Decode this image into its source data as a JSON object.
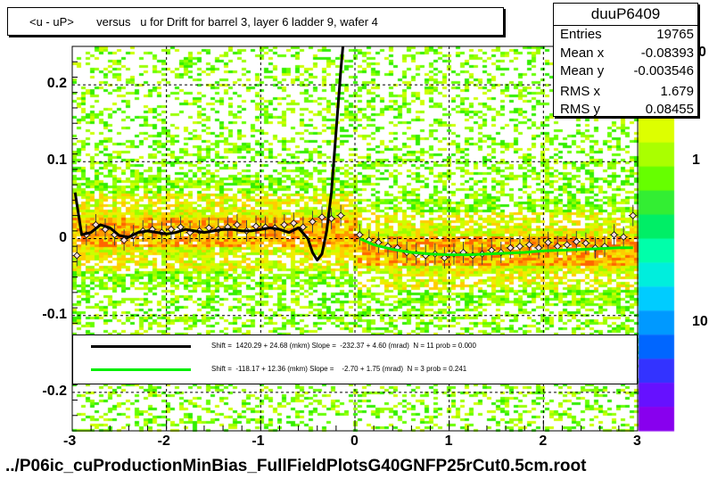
{
  "chart_data": {
    "type": "scatter",
    "title": "<u - uP>       versus   u for Drift for barrel 3, layer 6 ladder 9, wafer 4",
    "xlabel": "",
    "ylabel": "",
    "xlim": [
      -3,
      3
    ],
    "ylim": [
      -0.25,
      0.25
    ],
    "x_ticks": [
      {
        "value": -3,
        "label": "-3"
      },
      {
        "value": -2,
        "label": "-2"
      },
      {
        "value": -1,
        "label": "-1"
      },
      {
        "value": 0,
        "label": "0"
      },
      {
        "value": 1,
        "label": "1"
      },
      {
        "value": 2,
        "label": "2"
      },
      {
        "value": 3,
        "label": "3"
      }
    ],
    "y_ticks": [
      {
        "value": 0.2,
        "label": "0.2"
      },
      {
        "value": 0.1,
        "label": "0.1"
      },
      {
        "value": 0,
        "label": "0"
      },
      {
        "value": -0.1,
        "label": "-0.1"
      },
      {
        "value": -0.2,
        "label": "-0.2"
      }
    ],
    "grid": true,
    "palette_labels": [
      {
        "value": "1",
        "level": 0.7
      },
      {
        "value": "10",
        "level": 0.28
      }
    ],
    "palette_partial_label": "0",
    "profile_points": [
      {
        "x": -2.95,
        "y": -0.022
      },
      {
        "x": -2.85,
        "y": 0.005
      },
      {
        "x": -2.75,
        "y": 0.018
      },
      {
        "x": -2.65,
        "y": 0.012
      },
      {
        "x": -2.55,
        "y": 0.005
      },
      {
        "x": -2.45,
        "y": -0.002
      },
      {
        "x": -2.35,
        "y": 0.004
      },
      {
        "x": -2.25,
        "y": 0.01
      },
      {
        "x": -2.15,
        "y": 0.012
      },
      {
        "x": -2.05,
        "y": 0.008
      },
      {
        "x": -1.95,
        "y": 0.012
      },
      {
        "x": -1.85,
        "y": 0.015
      },
      {
        "x": -1.75,
        "y": 0.008
      },
      {
        "x": -1.65,
        "y": 0.01
      },
      {
        "x": -1.55,
        "y": 0.014
      },
      {
        "x": -1.45,
        "y": 0.012
      },
      {
        "x": -1.35,
        "y": 0.015
      },
      {
        "x": -1.25,
        "y": 0.018
      },
      {
        "x": -1.15,
        "y": 0.01
      },
      {
        "x": -1.05,
        "y": 0.016
      },
      {
        "x": -0.95,
        "y": 0.015
      },
      {
        "x": -0.85,
        "y": 0.014
      },
      {
        "x": -0.75,
        "y": 0.018
      },
      {
        "x": -0.65,
        "y": 0.02
      },
      {
        "x": -0.55,
        "y": 0.015
      },
      {
        "x": -0.45,
        "y": 0.022
      },
      {
        "x": -0.35,
        "y": 0.028
      },
      {
        "x": -0.25,
        "y": 0.026
      },
      {
        "x": -0.15,
        "y": 0.03
      },
      {
        "x": 0.05,
        "y": 0.005
      },
      {
        "x": 0.15,
        "y": -0.002
      },
      {
        "x": 0.25,
        "y": -0.005
      },
      {
        "x": 0.35,
        "y": -0.01
      },
      {
        "x": 0.45,
        "y": -0.012
      },
      {
        "x": 0.55,
        "y": -0.018
      },
      {
        "x": 0.65,
        "y": -0.02
      },
      {
        "x": 0.75,
        "y": -0.022
      },
      {
        "x": 0.85,
        "y": -0.02
      },
      {
        "x": 0.95,
        "y": -0.025
      },
      {
        "x": 1.05,
        "y": -0.02
      },
      {
        "x": 1.15,
        "y": -0.018
      },
      {
        "x": 1.25,
        "y": -0.022
      },
      {
        "x": 1.35,
        "y": -0.02
      },
      {
        "x": 1.45,
        "y": -0.015
      },
      {
        "x": 1.55,
        "y": -0.018
      },
      {
        "x": 1.65,
        "y": -0.012
      },
      {
        "x": 1.75,
        "y": -0.01
      },
      {
        "x": 1.85,
        "y": -0.008
      },
      {
        "x": 1.95,
        "y": -0.012
      },
      {
        "x": 2.05,
        "y": -0.005
      },
      {
        "x": 2.15,
        "y": -0.01
      },
      {
        "x": 2.25,
        "y": -0.008
      },
      {
        "x": 2.35,
        "y": -0.004
      },
      {
        "x": 2.45,
        "y": -0.006
      },
      {
        "x": 2.55,
        "y": -0.012
      },
      {
        "x": 2.65,
        "y": -0.01
      },
      {
        "x": 2.75,
        "y": 0.005
      },
      {
        "x": 2.85,
        "y": 0.002
      },
      {
        "x": 2.95,
        "y": 0.03
      }
    ],
    "series": [
      {
        "color": "#000000",
        "x": [
          -2.97,
          -2.9,
          -2.8,
          -2.7,
          -2.6,
          -2.5,
          -2.4,
          -2.3,
          -2.2,
          -2.1,
          -2.0,
          -1.9,
          -1.8,
          -1.7,
          -1.6,
          -1.5,
          -1.4,
          -1.3,
          -1.2,
          -1.1,
          -1.0,
          -0.9,
          -0.8,
          -0.7,
          -0.6,
          -0.5,
          -0.45,
          -0.4,
          -0.35,
          -0.3,
          -0.25,
          -0.2,
          -0.15,
          -0.12
        ],
        "y": [
          0.06,
          0.005,
          0.008,
          0.018,
          0.014,
          0.004,
          0.002,
          0.008,
          0.01,
          0.008,
          0.006,
          0.008,
          0.012,
          0.01,
          0.008,
          0.01,
          0.012,
          0.012,
          0.01,
          0.01,
          0.012,
          0.014,
          0.012,
          0.008,
          0.014,
          0.0,
          -0.018,
          -0.028,
          -0.02,
          0.01,
          0.06,
          0.14,
          0.22,
          0.26
        ]
      },
      {
        "color": "#00ee00",
        "x": [
          0.05,
          0.2,
          0.4,
          0.6,
          0.8,
          1.0,
          1.2,
          1.4,
          1.6,
          1.8,
          2.0,
          2.2,
          2.4,
          2.6,
          2.8,
          2.95
        ],
        "y": [
          0.0,
          -0.008,
          -0.014,
          -0.018,
          -0.02,
          -0.021,
          -0.021,
          -0.02,
          -0.019,
          -0.018,
          -0.016,
          -0.015,
          -0.014,
          -0.013,
          -0.012,
          -0.012
        ]
      }
    ]
  },
  "title": "<u - uP>       versus   u for Drift for barrel 3, layer 6 ladder 9, wafer 4",
  "stats": {
    "name": "duuP6409",
    "rows": [
      {
        "label": "Entries",
        "value": "19765"
      },
      {
        "label": "Mean x",
        "value": "-0.08393"
      },
      {
        "label": "Mean y",
        "value": "-0.003546"
      },
      {
        "label": "RMS x",
        "value": "1.679"
      },
      {
        "label": "RMS y",
        "value": "0.08455"
      }
    ]
  },
  "legend": {
    "black_text": "Shift =  1420.29 + 24.68 (mkm) Slope =  -232.37 + 4.60 (mrad)  N = 11 prob = 0.000",
    "green_text": "Shift =  -118.17 + 12.36 (mkm) Slope =    -2.70 + 1.75 (mrad)  N = 3 prob = 0.241"
  },
  "footer": "../P06ic_cuProductionMinBias_FullFieldPlotsG40GNFP25rCut0.5cm.root"
}
